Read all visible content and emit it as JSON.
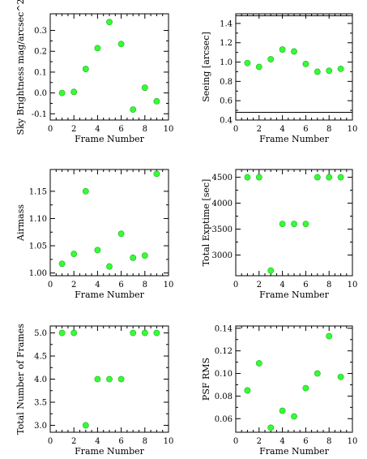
{
  "chart_data": [
    {
      "type": "scatter",
      "xlabel": "Frame Number",
      "ylabel": "Sky Brightness mag/arcsec^2",
      "xlim": [
        0,
        10
      ],
      "ylim": [
        -0.13,
        0.38
      ],
      "xticks": [
        0,
        2,
        4,
        6,
        8,
        10
      ],
      "yticks": [
        -0.1,
        0.0,
        0.1,
        0.2,
        0.3
      ],
      "ytick_labels": [
        "-0.1",
        "0.0",
        "0.1",
        "0.2",
        "0.3"
      ],
      "x": [
        1,
        2,
        3,
        4,
        5,
        6,
        7,
        8,
        9
      ],
      "y": [
        0.0,
        0.005,
        0.115,
        0.215,
        0.34,
        0.235,
        -0.08,
        0.025,
        -0.04
      ],
      "marker_color": "#33ff33"
    },
    {
      "type": "scatter",
      "xlabel": "Frame Number",
      "ylabel": "Seeing [arcsec]",
      "xlim": [
        0,
        10
      ],
      "ylim": [
        0.4,
        1.5
      ],
      "xticks": [
        0,
        2,
        4,
        6,
        8,
        10
      ],
      "yticks": [
        0.4,
        0.6,
        0.8,
        1.0,
        1.2,
        1.4
      ],
      "ytick_labels": [
        "0.4",
        "0.6",
        "0.8",
        "1.0",
        "1.2",
        "1.4"
      ],
      "x": [
        1,
        2,
        3,
        4,
        5,
        6,
        7,
        8,
        9
      ],
      "y": [
        0.99,
        0.95,
        1.03,
        1.13,
        1.11,
        0.98,
        0.9,
        0.91,
        0.93
      ],
      "hlines": [
        1.48,
        0.48
      ],
      "marker_color": "#33ff33"
    },
    {
      "type": "scatter",
      "xlabel": "Frame Number",
      "ylabel": "Airmass",
      "xlim": [
        0,
        10
      ],
      "ylim": [
        0.995,
        1.19
      ],
      "xticks": [
        0,
        2,
        4,
        6,
        8,
        10
      ],
      "yticks": [
        1.0,
        1.05,
        1.1,
        1.15
      ],
      "ytick_labels": [
        "1.00",
        "1.05",
        "1.10",
        "1.15"
      ],
      "x": [
        1,
        2,
        3,
        4,
        5,
        6,
        7,
        8,
        9
      ],
      "y": [
        1.017,
        1.035,
        1.15,
        1.042,
        1.012,
        1.072,
        1.028,
        1.032,
        1.182
      ],
      "marker_color": "#33ff33"
    },
    {
      "type": "scatter",
      "xlabel": "Frame Number",
      "ylabel": "Total Exptime [sec]",
      "xlim": [
        0,
        10
      ],
      "ylim": [
        2600,
        4650
      ],
      "xticks": [
        0,
        2,
        4,
        6,
        8,
        10
      ],
      "yticks": [
        3000,
        3500,
        4000,
        4500
      ],
      "ytick_labels": [
        "3000",
        "3500",
        "4000",
        "4500"
      ],
      "x": [
        1,
        2,
        3,
        4,
        5,
        6,
        7,
        8,
        9
      ],
      "y": [
        4500,
        4500,
        2700,
        3600,
        3600,
        3600,
        4500,
        4500,
        4500
      ],
      "marker_color": "#33ff33"
    },
    {
      "type": "scatter",
      "xlabel": "Frame Number",
      "ylabel": "Total Number of Frames",
      "xlim": [
        0,
        10
      ],
      "ylim": [
        2.85,
        5.15
      ],
      "xticks": [
        0,
        2,
        4,
        6,
        8,
        10
      ],
      "yticks": [
        3.0,
        3.5,
        4.0,
        4.5,
        5.0
      ],
      "ytick_labels": [
        "3.0",
        "3.5",
        "4.0",
        "4.5",
        "5.0"
      ],
      "x": [
        1,
        2,
        3,
        4,
        5,
        6,
        7,
        8,
        9
      ],
      "y": [
        5,
        5,
        3,
        4,
        4,
        4,
        5,
        5,
        5
      ],
      "marker_color": "#33ff33"
    },
    {
      "type": "scatter",
      "xlabel": "Frame Number",
      "ylabel": "PSF RMS",
      "xlim": [
        0,
        10
      ],
      "ylim": [
        0.048,
        0.142
      ],
      "xticks": [
        0,
        2,
        4,
        6,
        8,
        10
      ],
      "yticks": [
        0.06,
        0.08,
        0.1,
        0.12,
        0.14
      ],
      "ytick_labels": [
        "0.06",
        "0.08",
        "0.10",
        "0.12",
        "0.14"
      ],
      "x": [
        1,
        2,
        3,
        4,
        5,
        6,
        7,
        8,
        9
      ],
      "y": [
        0.085,
        0.109,
        0.052,
        0.067,
        0.062,
        0.087,
        0.1,
        0.133,
        0.097
      ],
      "marker_color": "#33ff33"
    }
  ]
}
